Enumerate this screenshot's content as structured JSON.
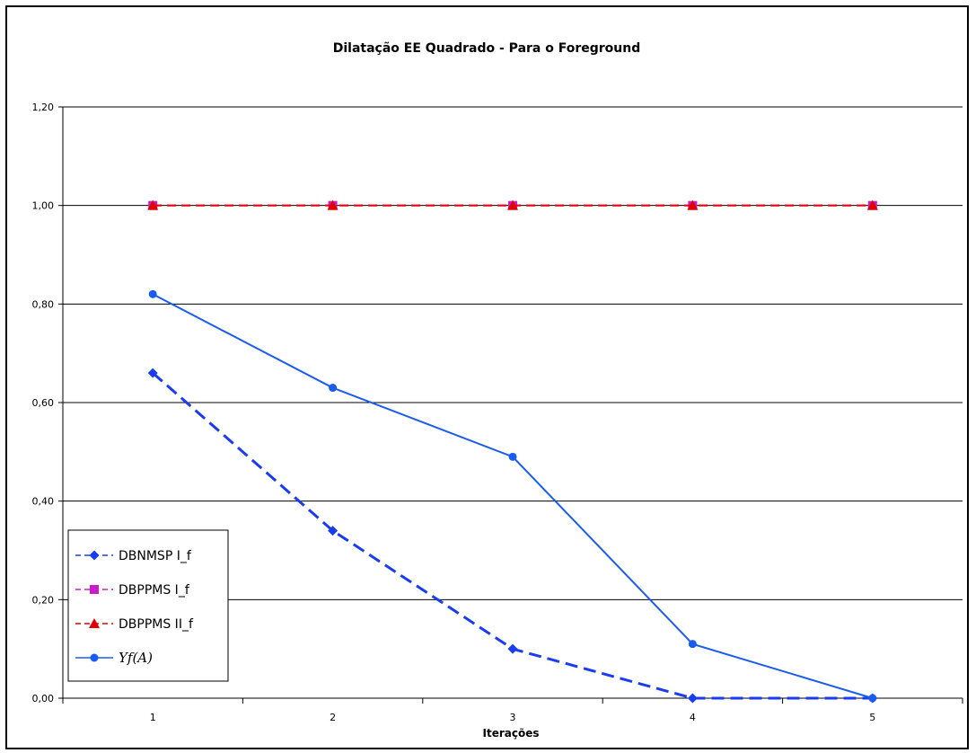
{
  "chart_data": {
    "type": "line",
    "title": "Dilatação EE Quadrado - Para o Foreground",
    "xlabel": "Iterações",
    "ylabel": "",
    "categories": [
      "1",
      "2",
      "3",
      "4",
      "5"
    ],
    "ylim": [
      0,
      1.2
    ],
    "ytick_step": 0.2,
    "ytick_labels": [
      "0,00",
      "0,20",
      "0,40",
      "0,60",
      "0,80",
      "1,00",
      "1,20"
    ],
    "grid": "horizontal",
    "legend_position": "bottom-left",
    "series": [
      {
        "name": "DBNMSP I_f",
        "values": [
          0.66,
          0.34,
          0.1,
          0.0,
          0.0
        ],
        "color": "#1a3cf0",
        "marker": "diamond",
        "dash": "dashed"
      },
      {
        "name": "DBPPMS I_f",
        "values": [
          1.0,
          1.0,
          1.0,
          1.0,
          1.0
        ],
        "color": "#c81ec8",
        "marker": "square",
        "dash": "dashed"
      },
      {
        "name": "DBPPMS II_f",
        "values": [
          1.0,
          1.0,
          1.0,
          1.0,
          1.0
        ],
        "color": "#e00000",
        "marker": "triangle",
        "dash": "dashed"
      },
      {
        "name": "Υf(A)",
        "values": [
          0.82,
          0.63,
          0.49,
          0.11,
          0.0
        ],
        "color": "#1a5cf0",
        "marker": "circle",
        "dash": "solid"
      }
    ]
  }
}
